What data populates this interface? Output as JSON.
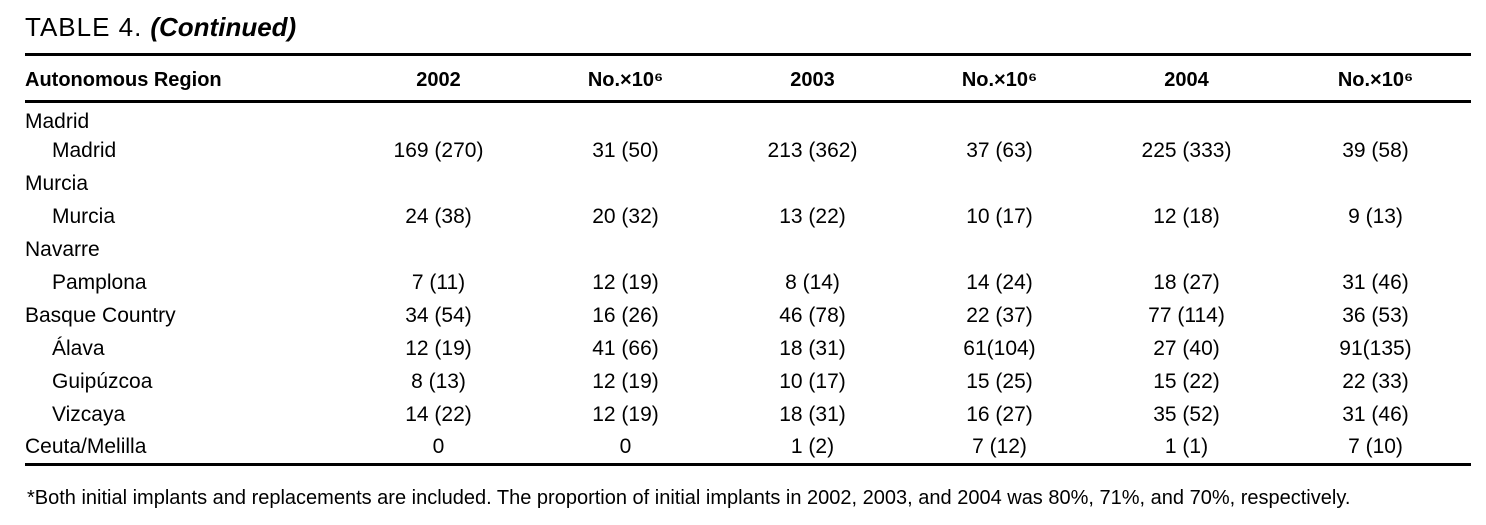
{
  "title": {
    "prefix": "TABLE 4.",
    "continued": "(Continued)"
  },
  "colors": {
    "text": "#000000",
    "background": "#ffffff",
    "rule": "#000000"
  },
  "table": {
    "columns": [
      "Autonomous Region",
      "2002",
      "No.×10⁶",
      "2003",
      "No.×10⁶",
      "2004",
      "No.×10⁶"
    ],
    "rows": [
      {
        "label": "Madrid",
        "indent": false,
        "cells": [
          "",
          "",
          "",
          "",
          "",
          ""
        ]
      },
      {
        "label": "Madrid",
        "indent": true,
        "cells": [
          "169 (270)",
          "31 (50)",
          "213 (362)",
          "37 (63)",
          "225 (333)",
          "39 (58)"
        ]
      },
      {
        "label": "Murcia",
        "indent": false,
        "cells": [
          "",
          "",
          "",
          "",
          "",
          ""
        ]
      },
      {
        "label": "Murcia",
        "indent": true,
        "cells": [
          "24 (38)",
          "20 (32)",
          "13 (22)",
          "10 (17)",
          "12 (18)",
          "9 (13)"
        ]
      },
      {
        "label": "Navarre",
        "indent": false,
        "cells": [
          "",
          "",
          "",
          "",
          "",
          ""
        ]
      },
      {
        "label": "Pamplona",
        "indent": true,
        "cells": [
          "7 (11)",
          "12 (19)",
          "8 (14)",
          "14 (24)",
          "18 (27)",
          "31 (46)"
        ]
      },
      {
        "label": "Basque Country",
        "indent": false,
        "cells": [
          "34 (54)",
          "16 (26)",
          "46 (78)",
          "22 (37)",
          "77 (114)",
          "36 (53)"
        ]
      },
      {
        "label": "Álava",
        "indent": true,
        "cells": [
          "12 (19)",
          "41 (66)",
          "18 (31)",
          "61(104)",
          "27 (40)",
          "91(135)"
        ]
      },
      {
        "label": "Guipúzcoa",
        "indent": true,
        "cells": [
          "8 (13)",
          "12 (19)",
          "10 (17)",
          "15 (25)",
          "15 (22)",
          "22 (33)"
        ]
      },
      {
        "label": "Vizcaya",
        "indent": true,
        "cells": [
          "14 (22)",
          "12 (19)",
          "18 (31)",
          "16 (27)",
          "35 (52)",
          "31 (46)"
        ]
      },
      {
        "label": "Ceuta/Melilla",
        "indent": false,
        "cells": [
          "0",
          "0",
          "1 (2)",
          "7 (12)",
          "1 (1)",
          "7 (10)"
        ]
      }
    ]
  },
  "footnote": "*Both initial implants and replacements are included. The proportion of initial implants in 2002, 2003, and 2004 was 80%, 71%, and 70%, respectively."
}
